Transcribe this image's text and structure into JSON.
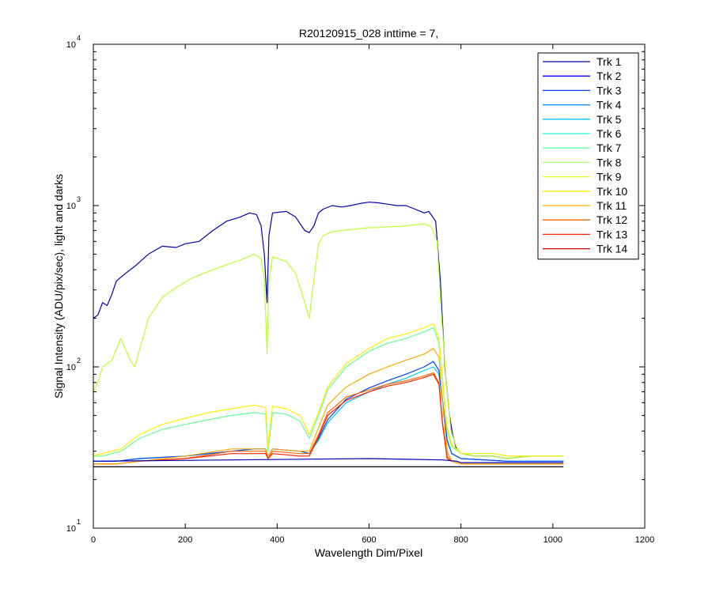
{
  "chart_data": {
    "type": "line",
    "title": "R20120915_028 inttime = 7,",
    "xlabel": "Wavelength Dim/Pixel",
    "ylabel": "Signal Intensity (ADU/pix/sec), light and darks",
    "xlim": [
      0,
      1200
    ],
    "ylim": [
      10,
      10000
    ],
    "yscale": "log",
    "grid": false,
    "legend_position": "top-right",
    "x_ticks": [
      0,
      200,
      400,
      600,
      800,
      1000,
      1200
    ],
    "x_tick_labels": [
      "0",
      "200",
      "400",
      "600",
      "800",
      "1000",
      "1200"
    ],
    "y_ticks": [
      {
        "value": 10,
        "base": "10",
        "exp": "1"
      },
      {
        "value": 100,
        "base": "10",
        "exp": "2"
      },
      {
        "value": 1000,
        "base": "10",
        "exp": "3"
      },
      {
        "value": 10000,
        "base": "10",
        "exp": "4"
      }
    ],
    "legend": [
      "Trk 1",
      "Trk 2",
      "Trk 3",
      "Trk 4",
      "Trk 5",
      "Trk 6",
      "Trk 7",
      "Trk 8",
      "Trk 9",
      "Trk 10",
      "Trk 11",
      "Trk 12",
      "Trk 13",
      "Trk 14"
    ],
    "colors": [
      "#0000b0",
      "#0000ff",
      "#0044ff",
      "#0088ff",
      "#00c8ff",
      "#22ffdd",
      "#66ffaa",
      "#aaff66",
      "#ddff22",
      "#ffee00",
      "#ffaa00",
      "#ff6600",
      "#ff2200",
      "#cc0000"
    ],
    "series": [
      {
        "name": "Trk 2 (light)",
        "color": "#0000b0",
        "x": [
          0,
          10,
          20,
          30,
          40,
          50,
          70,
          90,
          120,
          150,
          180,
          200,
          230,
          260,
          290,
          320,
          340,
          355,
          365,
          372,
          378,
          382,
          390,
          420,
          440,
          460,
          470,
          480,
          490,
          500,
          520,
          540,
          560,
          580,
          600,
          620,
          640,
          660,
          680,
          700,
          720,
          730,
          745,
          755,
          765,
          775,
          782,
          790,
          800,
          830,
          870,
          900,
          950,
          1023
        ],
        "y": [
          200,
          210,
          250,
          240,
          280,
          340,
          380,
          420,
          500,
          560,
          550,
          580,
          600,
          700,
          800,
          850,
          900,
          880,
          750,
          500,
          250,
          650,
          900,
          920,
          850,
          700,
          680,
          750,
          900,
          950,
          1000,
          980,
          1000,
          1030,
          1050,
          1040,
          1020,
          1000,
          1000,
          950,
          900,
          920,
          800,
          350,
          100,
          50,
          38,
          31,
          29,
          28,
          28,
          27,
          28,
          28
        ]
      },
      {
        "name": "Trk 9 (light)",
        "color": "#bbff33",
        "x": [
          0,
          10,
          20,
          40,
          60,
          80,
          90,
          120,
          150,
          180,
          210,
          240,
          280,
          320,
          350,
          365,
          372,
          378,
          382,
          390,
          420,
          440,
          460,
          470,
          480,
          490,
          500,
          520,
          540,
          560,
          580,
          600,
          620,
          640,
          660,
          680,
          700,
          720,
          735,
          748,
          758,
          768,
          778,
          790,
          800,
          830,
          870,
          900,
          950,
          1023
        ],
        "y": [
          70,
          80,
          100,
          110,
          150,
          110,
          100,
          200,
          270,
          310,
          350,
          380,
          420,
          460,
          500,
          470,
          350,
          120,
          340,
          480,
          450,
          380,
          250,
          200,
          350,
          580,
          650,
          690,
          700,
          710,
          720,
          730,
          730,
          740,
          740,
          750,
          760,
          770,
          740,
          600,
          200,
          80,
          40,
          32,
          29,
          28,
          28,
          27,
          28,
          28
        ]
      },
      {
        "name": "Trk 7 (light)",
        "color": "#66ff99",
        "x": [
          0,
          20,
          60,
          100,
          150,
          200,
          250,
          300,
          350,
          375,
          380,
          390,
          420,
          450,
          470,
          490,
          510,
          550,
          600,
          640,
          680,
          720,
          740,
          752,
          760,
          770,
          780,
          800,
          870,
          900,
          950,
          1023
        ],
        "y": [
          28,
          28,
          30,
          36,
          41,
          44,
          47,
          50,
          52,
          51,
          30,
          52,
          51,
          46,
          36,
          50,
          72,
          100,
          125,
          140,
          150,
          165,
          175,
          140,
          80,
          40,
          32,
          29,
          29,
          28,
          28,
          28
        ]
      },
      {
        "name": "Trk 10 (light)",
        "color": "#ffee00",
        "x": [
          0,
          20,
          60,
          100,
          150,
          200,
          250,
          300,
          350,
          375,
          380,
          390,
          420,
          450,
          470,
          490,
          510,
          550,
          600,
          640,
          680,
          720,
          740,
          752,
          760,
          770,
          780,
          800,
          870,
          900,
          950,
          1023
        ],
        "y": [
          28,
          29,
          31,
          38,
          44,
          48,
          52,
          55,
          58,
          56,
          32,
          57,
          55,
          50,
          38,
          52,
          75,
          105,
          130,
          150,
          160,
          175,
          185,
          150,
          85,
          42,
          33,
          29,
          29,
          28,
          28,
          28
        ]
      },
      {
        "name": "Trk 5 (light)",
        "color": "#00c8ff",
        "x": [
          0,
          50,
          100,
          200,
          300,
          350,
          375,
          380,
          390,
          450,
          470,
          490,
          510,
          550,
          600,
          640,
          680,
          720,
          740,
          752,
          760,
          770,
          780,
          800,
          900,
          1023
        ],
        "y": [
          26,
          26,
          27,
          28,
          30,
          31,
          31,
          28,
          31,
          30,
          29,
          35,
          45,
          60,
          70,
          78,
          85,
          95,
          100,
          90,
          60,
          35,
          29,
          27,
          26,
          26
        ]
      },
      {
        "name": "Trk 3 (light)",
        "color": "#0044ff",
        "x": [
          0,
          50,
          100,
          200,
          300,
          350,
          375,
          380,
          390,
          450,
          470,
          490,
          510,
          550,
          600,
          640,
          680,
          720,
          740,
          752,
          760,
          770,
          780,
          800,
          900,
          1023
        ],
        "y": [
          26,
          26,
          27,
          28,
          30,
          31,
          31,
          28,
          31,
          30,
          29,
          36,
          47,
          63,
          74,
          82,
          90,
          100,
          108,
          95,
          62,
          35,
          29,
          27,
          26,
          26
        ]
      },
      {
        "name": "Trk 12 (light)",
        "color": "#ff6600",
        "x": [
          0,
          50,
          100,
          200,
          300,
          350,
          375,
          380,
          390,
          450,
          470,
          490,
          510,
          550,
          600,
          640,
          680,
          720,
          740,
          752,
          760,
          770,
          780,
          800,
          900,
          1023
        ],
        "y": [
          25,
          25,
          26,
          27,
          30,
          30,
          30,
          27,
          30,
          29,
          29,
          38,
          52,
          65,
          72,
          78,
          82,
          88,
          92,
          80,
          45,
          28,
          26,
          25,
          25,
          25
        ]
      },
      {
        "name": "Trk 13 (light)",
        "color": "#ff2200",
        "x": [
          0,
          50,
          100,
          200,
          300,
          350,
          375,
          380,
          390,
          450,
          470,
          490,
          510,
          550,
          600,
          640,
          680,
          720,
          740,
          752,
          760,
          770,
          780,
          800,
          900,
          1023
        ],
        "y": [
          25,
          25,
          26,
          27,
          29,
          29,
          29,
          27,
          29,
          28,
          28,
          37,
          50,
          62,
          70,
          76,
          80,
          86,
          90,
          78,
          44,
          27,
          26,
          25,
          25,
          25
        ]
      },
      {
        "name": "Trk 11 (light)",
        "color": "#ffaa00",
        "x": [
          0,
          50,
          100,
          200,
          300,
          350,
          375,
          380,
          390,
          450,
          470,
          490,
          510,
          550,
          600,
          640,
          680,
          720,
          740,
          752,
          760,
          770,
          780,
          800,
          900,
          1023
        ],
        "y": [
          25,
          25,
          26,
          28,
          31,
          31,
          31,
          28,
          31,
          30,
          30,
          42,
          58,
          75,
          90,
          100,
          110,
          120,
          130,
          115,
          60,
          30,
          26,
          25,
          25,
          25
        ]
      },
      {
        "name": "Trk 1 (dark)",
        "color": "#0000b0",
        "x": [
          0,
          300,
          600,
          760,
          790,
          800,
          1023
        ],
        "y": [
          26,
          26.5,
          27,
          26.5,
          26,
          25.5,
          25.5
        ]
      },
      {
        "name": "Trk 14 (dark)",
        "color": "#000000",
        "x": [
          0,
          1023
        ],
        "y": [
          24,
          24
        ]
      }
    ]
  }
}
